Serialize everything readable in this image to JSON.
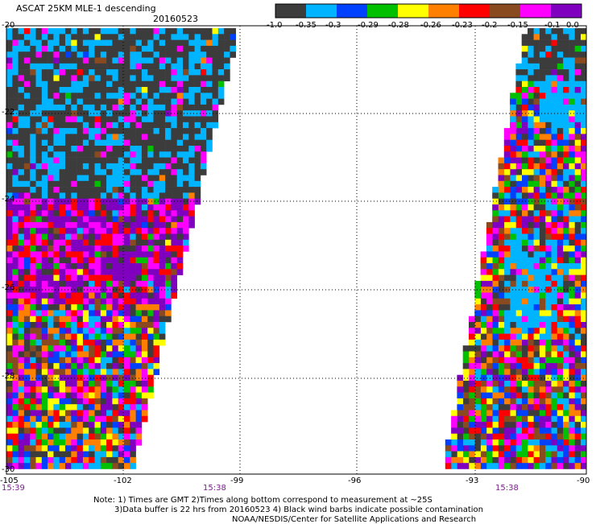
{
  "header": {
    "title": "ASCAT 25KM MLE-1 descending",
    "date": "20160523"
  },
  "legend": {
    "colors": [
      "#3c3c3c",
      "#00b4ff",
      "#0040ff",
      "#00c000",
      "#ffff00",
      "#ff8000",
      "#ff0000",
      "#8a4a20",
      "#ff00ff",
      "#8000c0"
    ],
    "tick_labels": [
      "-1.0",
      "-0.35",
      "-0.3",
      "-0.29",
      "-0.28",
      "-0.26",
      "-0.23",
      "-0.2",
      "-0.15",
      "-0.1",
      "0.0"
    ]
  },
  "axes": {
    "lat_labels": [
      "-20",
      "-22",
      "-24",
      "-26",
      "-28",
      "-30"
    ],
    "lon_labels": [
      "-105",
      "-102",
      "-99",
      "-96",
      "-93",
      "-90"
    ]
  },
  "times": [
    "15:39",
    "15:38",
    "15:38"
  ],
  "notes": [
    "Note: 1) Times are GMT 2)Times along bottom correspond to measurement at ~25S",
    "3)Data buffer is 22 hrs from 20160523 4) Black wind barbs indicate possible contamination",
    "NOAA/NESDIS/Center for Satellite Applications and Research"
  ]
}
